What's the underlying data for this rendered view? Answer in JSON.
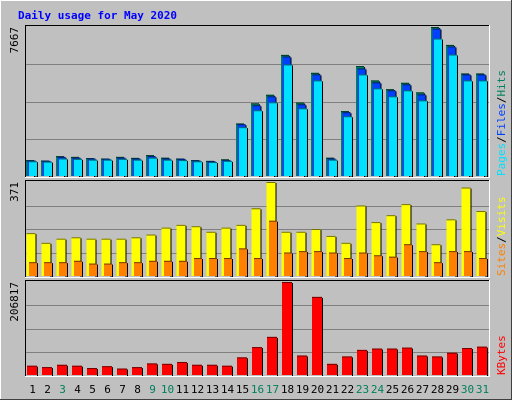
{
  "chart_data": [
    {
      "type": "bar",
      "title": "Daily usage for May 2020",
      "panel": "hits-files-pages",
      "ymax_label": "7667",
      "legend": [
        "Pages",
        "/",
        "Files",
        "/",
        "Hits"
      ],
      "categories": [
        "1",
        "2",
        "3",
        "4",
        "5",
        "6",
        "7",
        "8",
        "9",
        "10",
        "11",
        "12",
        "13",
        "14",
        "15",
        "16",
        "17",
        "18",
        "19",
        "20",
        "21",
        "22",
        "23",
        "24",
        "25",
        "26",
        "27",
        "28",
        "29",
        "30",
        "31"
      ],
      "series": [
        {
          "name": "Hits",
          "values": [
            800,
            780,
            1000,
            960,
            900,
            880,
            960,
            910,
            1050,
            920,
            880,
            800,
            760,
            840,
            2640,
            3650,
            4080,
            6080,
            3690,
            5180,
            920,
            3260,
            5520,
            4800,
            4360,
            4680,
            4200,
            7480,
            6580,
            5150,
            5150
          ]
        },
        {
          "name": "Files",
          "values": [
            780,
            760,
            960,
            920,
            880,
            860,
            920,
            880,
            1000,
            880,
            860,
            780,
            740,
            800,
            2600,
            3550,
            4000,
            6000,
            3600,
            5100,
            880,
            3200,
            5400,
            4700,
            4300,
            4600,
            4100,
            7400,
            6500,
            5100,
            5100
          ]
        },
        {
          "name": "Pages",
          "values": [
            740,
            720,
            880,
            860,
            820,
            820,
            860,
            820,
            920,
            820,
            800,
            740,
            700,
            760,
            2450,
            3300,
            3700,
            5600,
            3400,
            4800,
            820,
            3000,
            5100,
            4400,
            4000,
            4300,
            3800,
            6900,
            6100,
            4800,
            4800
          ]
        }
      ],
      "colors": {
        "Hits": "#00805c",
        "Files": "#0040ff",
        "Pages": "#00e0ff"
      }
    },
    {
      "type": "bar",
      "panel": "visits-sites",
      "ymax_label": "371",
      "legend": [
        "Sites",
        "/",
        "Visits"
      ],
      "categories": [
        "1",
        "2",
        "3",
        "4",
        "5",
        "6",
        "7",
        "8",
        "9",
        "10",
        "11",
        "12",
        "13",
        "14",
        "15",
        "16",
        "17",
        "18",
        "19",
        "20",
        "21",
        "22",
        "23",
        "24",
        "25",
        "26",
        "27",
        "28",
        "29",
        "30",
        "31"
      ],
      "series": [
        {
          "name": "Visits",
          "values": [
            155,
            120,
            135,
            140,
            135,
            135,
            135,
            140,
            150,
            175,
            185,
            180,
            160,
            175,
            185,
            245,
            340,
            160,
            160,
            170,
            145,
            120,
            255,
            195,
            220,
            260,
            190,
            115,
            205,
            320,
            235
          ]
        },
        {
          "name": "Sites",
          "values": [
            50,
            50,
            50,
            55,
            45,
            45,
            50,
            50,
            55,
            55,
            55,
            65,
            65,
            65,
            100,
            65,
            200,
            85,
            90,
            90,
            85,
            65,
            85,
            75,
            70,
            115,
            90,
            50,
            90,
            90,
            65
          ]
        }
      ],
      "colors": {
        "Visits": "#ffff00",
        "Sites": "#ff8000"
      }
    },
    {
      "type": "bar",
      "panel": "kbytes",
      "ymax_label": "206817",
      "legend": [
        "KBytes"
      ],
      "categories": [
        "1",
        "2",
        "3",
        "4",
        "5",
        "6",
        "7",
        "8",
        "9",
        "10",
        "11",
        "12",
        "13",
        "14",
        "15",
        "16",
        "17",
        "18",
        "19",
        "20",
        "21",
        "22",
        "23",
        "24",
        "25",
        "26",
        "27",
        "28",
        "29",
        "30",
        "31"
      ],
      "series": [
        {
          "name": "KBytes",
          "values": [
            20000,
            17000,
            22000,
            20000,
            15000,
            19000,
            14000,
            17000,
            25000,
            24000,
            28000,
            22000,
            22000,
            20000,
            38000,
            60000,
            82000,
            200000,
            42000,
            168000,
            24000,
            40000,
            54000,
            57000,
            57000,
            59000,
            42000,
            40000,
            48000,
            58000,
            61000
          ]
        }
      ],
      "colors": {
        "KBytes": "#ff0000"
      }
    }
  ],
  "weekend_days": [
    "3",
    "9",
    "10",
    "16",
    "17",
    "23",
    "24",
    "30",
    "31"
  ],
  "colors": {
    "background": "#c0c0c0",
    "title": "#0000ff",
    "grid": "#808080",
    "weekday_label": "#000000",
    "weekend_label": "#00805c"
  }
}
